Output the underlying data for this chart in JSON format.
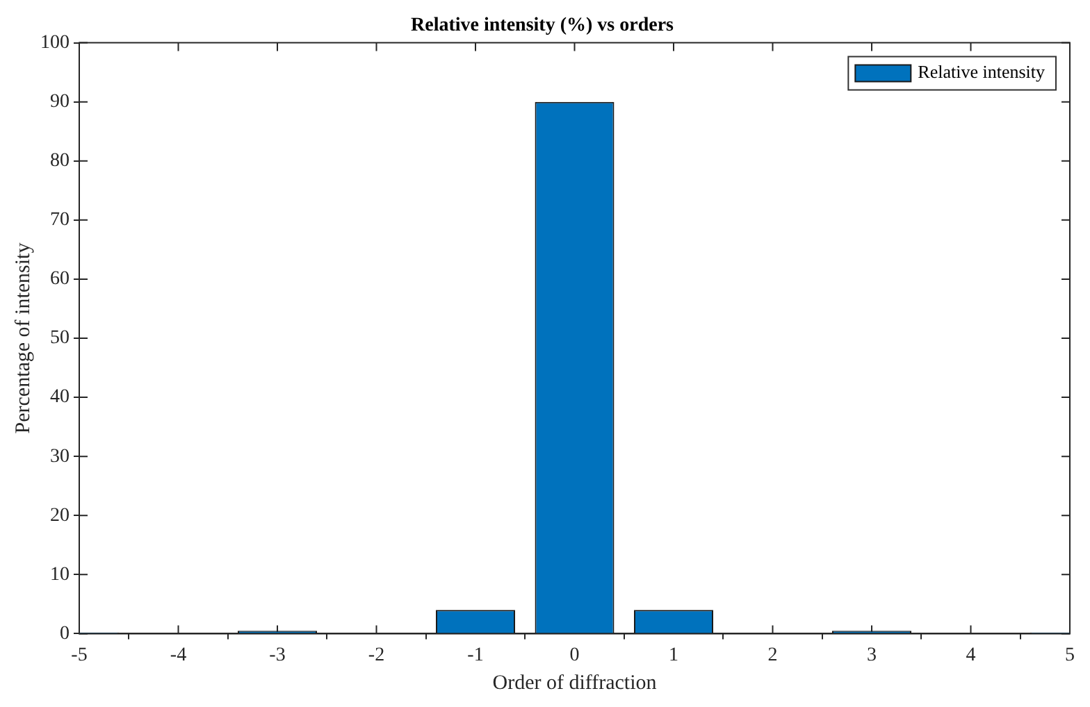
{
  "chart_data": {
    "type": "bar",
    "title": "Relative intensity (%) vs orders",
    "xlabel": "Order of diffraction",
    "ylabel": "Percentage of intensity",
    "x": [
      -5,
      -3,
      -1,
      0,
      1,
      3,
      5
    ],
    "series": [
      {
        "name": "Relative intensity",
        "color": "#0072bd",
        "values": [
          0.2,
          0.5,
          4,
          90,
          4,
          0.5,
          0.2
        ]
      }
    ],
    "xlim": [
      -5,
      5
    ],
    "xticks": [
      -5,
      -4,
      -3,
      -2,
      -1,
      0,
      1,
      2,
      3,
      4,
      5
    ],
    "ylim": [
      0,
      100
    ],
    "yticks": [
      0,
      10,
      20,
      30,
      40,
      50,
      60,
      70,
      80,
      90,
      100
    ],
    "legend": "top right"
  }
}
